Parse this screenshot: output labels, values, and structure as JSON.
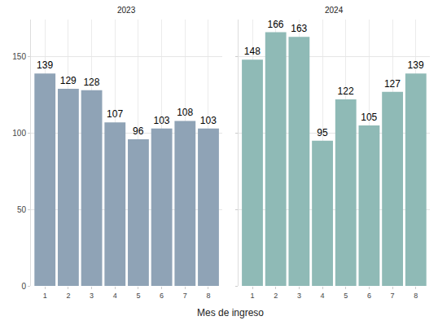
{
  "chart_data": [
    {
      "type": "bar",
      "title": "2023",
      "x_label": "Mes de ingreso",
      "categories": [
        "1",
        "2",
        "3",
        "4",
        "5",
        "6",
        "7",
        "8"
      ],
      "values": [
        139,
        129,
        128,
        107,
        96,
        103,
        108,
        103
      ],
      "color": "#8fa3b6",
      "ylim": [
        0,
        174.3
      ],
      "yticks": [
        0,
        50,
        100,
        150
      ],
      "grid": true,
      "data_labels": true
    },
    {
      "type": "bar",
      "title": "2024",
      "categories": [
        "1",
        "2",
        "3",
        "4",
        "5",
        "6",
        "7",
        "8"
      ],
      "values": [
        148,
        166,
        163,
        95,
        122,
        105,
        127,
        139
      ],
      "color": "#8fbab6",
      "ylim": [
        0,
        174.3
      ],
      "yticks": [
        0,
        50,
        100,
        150
      ],
      "grid": true,
      "data_labels": true,
      "tick_labels": "x"
    }
  ]
}
